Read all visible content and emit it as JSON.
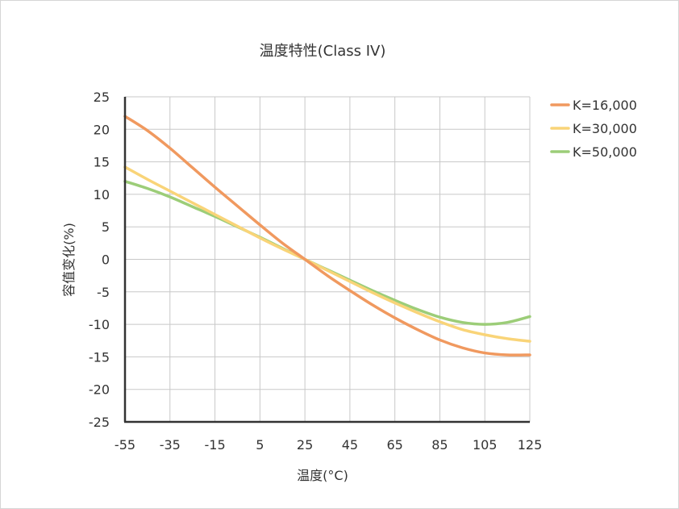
{
  "chart_data": {
    "type": "line",
    "title": "温度特性(Class IV)",
    "xlabel": "温度(°C)",
    "ylabel": "容值变化(%)",
    "x_ticks": [
      -55,
      -35,
      -15,
      5,
      25,
      45,
      65,
      85,
      105,
      125
    ],
    "y_ticks": [
      25,
      20,
      15,
      10,
      5,
      0,
      -5,
      -10,
      -15,
      -20,
      -25
    ],
    "xlim": [
      -55,
      125
    ],
    "ylim": [
      -25,
      25
    ],
    "grid": true,
    "legend_position": "top-right",
    "x": [
      -55,
      -45,
      -35,
      -25,
      -15,
      -5,
      5,
      15,
      25,
      35,
      45,
      55,
      65,
      75,
      85,
      95,
      105,
      115,
      125
    ],
    "series": [
      {
        "name": "K=16,000",
        "color": "#f0995f",
        "values": [
          22,
          19.8,
          17.1,
          14.1,
          11.1,
          8.2,
          5.3,
          2.5,
          0,
          -2.5,
          -4.8,
          -7,
          -9,
          -10.8,
          -12.4,
          -13.6,
          -14.4,
          -14.7,
          -14.7
        ]
      },
      {
        "name": "K=30,000",
        "color": "#f9d478",
        "values": [
          14.2,
          12.3,
          10.5,
          8.7,
          6.9,
          5.1,
          3.3,
          1.6,
          0,
          -1.7,
          -3.4,
          -5.1,
          -6.7,
          -8.2,
          -9.6,
          -10.8,
          -11.6,
          -12.2,
          -12.6
        ]
      },
      {
        "name": "K=50,000",
        "color": "#9ccd78",
        "values": [
          12,
          10.9,
          9.6,
          8.1,
          6.6,
          5,
          3.4,
          1.7,
          0,
          -1.6,
          -3.2,
          -4.8,
          -6.3,
          -7.7,
          -8.9,
          -9.7,
          -10,
          -9.7,
          -8.8
        ]
      }
    ]
  }
}
